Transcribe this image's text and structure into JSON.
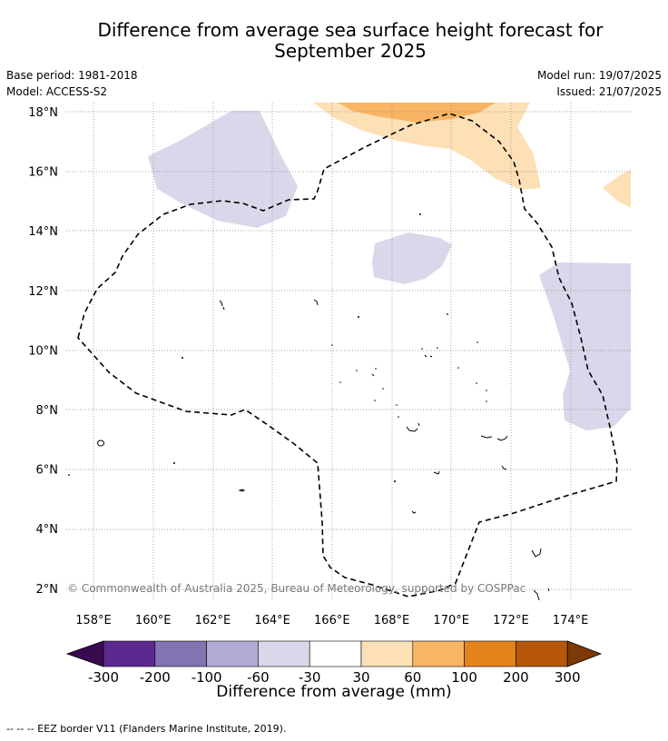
{
  "title": {
    "line1": "Difference from average sea surface height forecast for",
    "line2": "September 2025"
  },
  "meta": {
    "base_period": "Base period: 1981-2018",
    "model": "Model: ACCESS-S2",
    "model_run": "Model run: 19/07/2025",
    "issued": "Issued: 21/07/2025"
  },
  "axes": {
    "lat_labels": [
      "18°N",
      "16°N",
      "14°N",
      "12°N",
      "10°N",
      "8°N",
      "6°N",
      "4°N",
      "2°N"
    ],
    "lon_labels": [
      "158°E",
      "160°E",
      "162°E",
      "164°E",
      "166°E",
      "168°E",
      "170°E",
      "172°E",
      "174°E"
    ],
    "lat_values": [
      18,
      16,
      14,
      12,
      10,
      8,
      6,
      4,
      2
    ],
    "lon_values": [
      158,
      160,
      162,
      164,
      166,
      168,
      170,
      172,
      174
    ]
  },
  "copyright": "© Commonwealth of Australia 2025, Bureau of Meteorology, supported by COSPPac",
  "colorbar": {
    "label": "Difference from average (mm)",
    "ticks": [
      "-300",
      "-200",
      "-100",
      "-60",
      "-30",
      "30",
      "60",
      "100",
      "200",
      "300"
    ],
    "colors": [
      "#3a0a50",
      "#5a2a8e",
      "#8273b2",
      "#b2aad4",
      "#d8d8ea",
      "#ffffff",
      "#fde0b6",
      "#f9b563",
      "#e3831b",
      "#b55608",
      "#7e3a06"
    ]
  },
  "footnote": "--  --  -- EEZ border V11 (Flanders Marine Institute, 2019)."
}
